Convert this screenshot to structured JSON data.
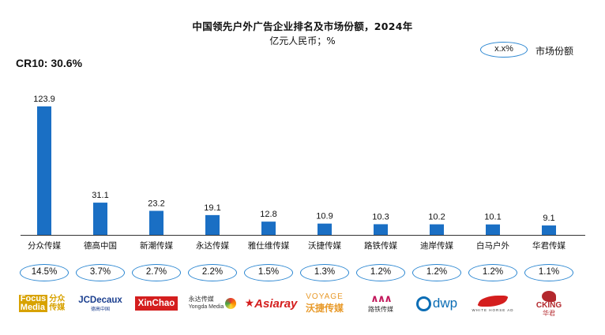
{
  "title": "中国领先户外广告企业排名及市场份额，2024年",
  "subtitle": "亿元人民币；%",
  "cr10_label": "CR10: 30.6%",
  "legend": {
    "sample": "x.x%",
    "label": "市场份额"
  },
  "colors": {
    "bar": "#1a6fc4",
    "oval": "#2a86d1",
    "axis": "#333333"
  },
  "chart_data": {
    "type": "bar",
    "categories": [
      "分众传媒",
      "德高中国",
      "新潮传媒",
      "永达传媒",
      "雅仕维传媒",
      "沃捷传媒",
      "路铁传媒",
      "迪岸传媒",
      "白马户外",
      "华君传媒"
    ],
    "values": [
      123.9,
      31.1,
      23.2,
      19.1,
      12.8,
      10.9,
      10.3,
      10.2,
      10.1,
      9.1
    ],
    "value_labels": [
      "123.9",
      "31.1",
      "23.2",
      "19.1",
      "12.8",
      "10.9",
      "10.3",
      "10.2",
      "10.1",
      "9.1"
    ],
    "shares": [
      "14.5%",
      "3.7%",
      "2.7%",
      "2.2%",
      "1.5%",
      "1.3%",
      "1.2%",
      "1.2%",
      "1.2%",
      "1.1%"
    ],
    "title": "中国领先户外广告企业排名及市场份额，2024年",
    "ylabel": "亿元人民币",
    "ylim": [
      0,
      123.9
    ]
  },
  "logos": [
    {
      "icon": "focus-media-logo",
      "text1": "Focus",
      "text2": "Media",
      "text3": "分众传媒"
    },
    {
      "icon": "jcdecaux-logo",
      "text1": "JCDecaux",
      "text2": "德高中国"
    },
    {
      "icon": "xinchao-logo",
      "text1": "XinChao"
    },
    {
      "icon": "yongda-media-logo",
      "text1": "永达传媒",
      "text2": "Yongda Media"
    },
    {
      "icon": "asiaray-logo",
      "text1": "Asiaray"
    },
    {
      "icon": "voyage-logo",
      "text1": "VOYAGE",
      "text2": "沃捷传媒"
    },
    {
      "icon": "lutie-media-logo",
      "text1": "路铁传媒"
    },
    {
      "icon": "dwp-logo",
      "text1": "dwp"
    },
    {
      "icon": "white-horse-logo",
      "text1": "WHITE HORSE AD"
    },
    {
      "icon": "cking-logo",
      "text1": "CKING",
      "text2": "华君"
    }
  ]
}
